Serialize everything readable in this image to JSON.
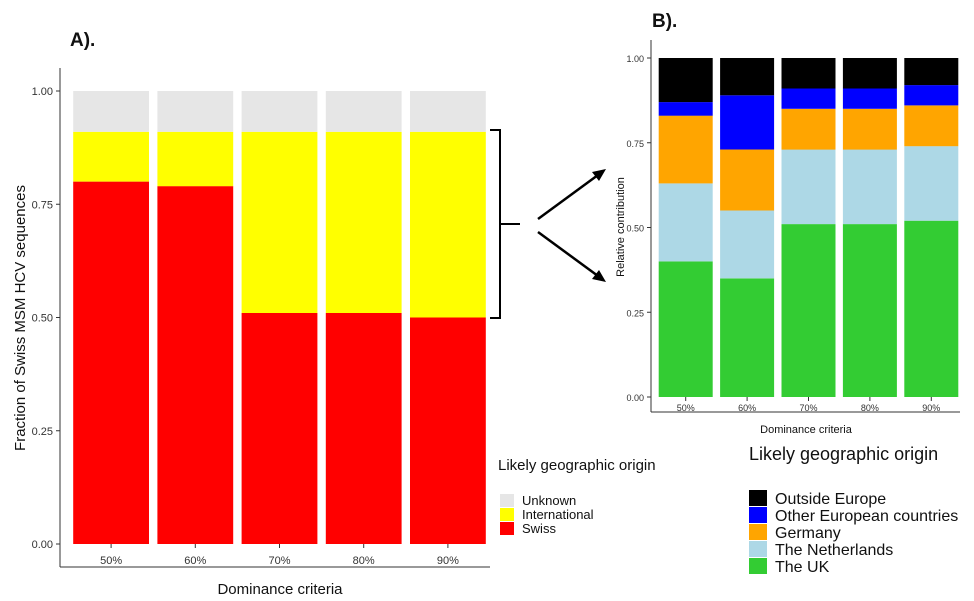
{
  "panel_labels": {
    "a": "A).",
    "b": "B)."
  },
  "chart_data": [
    {
      "type": "bar",
      "stacked": true,
      "xlabel": "Dominance criteria",
      "ylabel": "Fraction of Swiss MSM HCV sequences",
      "categories": [
        "50%",
        "60%",
        "70%",
        "80%",
        "90%"
      ],
      "ylim": [
        0,
        1
      ],
      "yticks": [
        "0.00",
        "0.25",
        "0.50",
        "0.75",
        "1.00"
      ],
      "grid": false,
      "legend": {
        "title": "Likely geographic origin",
        "position": "right"
      },
      "series": [
        {
          "name": "Swiss",
          "color": "#ff0000",
          "values": [
            0.8,
            0.79,
            0.51,
            0.51,
            0.5
          ]
        },
        {
          "name": "International",
          "color": "#ffff00",
          "values": [
            0.11,
            0.12,
            0.4,
            0.4,
            0.41
          ]
        },
        {
          "name": "Unknown",
          "color": "#e6e6e6",
          "values": [
            0.09,
            0.09,
            0.09,
            0.09,
            0.09
          ]
        }
      ]
    },
    {
      "type": "bar",
      "stacked": true,
      "xlabel": "Dominance criteria",
      "ylabel": "Relative contribution",
      "categories": [
        "50%",
        "60%",
        "70%",
        "80%",
        "90%"
      ],
      "ylim": [
        0,
        1
      ],
      "yticks": [
        "0.00",
        "0.25",
        "0.50",
        "0.75",
        "1.00"
      ],
      "grid": false,
      "legend": {
        "title": "Likely geographic origin",
        "position": "bottom-right"
      },
      "series": [
        {
          "name": "The UK",
          "color": "#33cc33",
          "values": [
            0.4,
            0.35,
            0.51,
            0.51,
            0.52
          ]
        },
        {
          "name": "The Netherlands",
          "color": "#add8e6",
          "values": [
            0.23,
            0.2,
            0.22,
            0.22,
            0.22
          ]
        },
        {
          "name": "Germany",
          "color": "#ffa500",
          "values": [
            0.2,
            0.18,
            0.12,
            0.12,
            0.12
          ]
        },
        {
          "name": "Other European countries",
          "color": "#0000ff",
          "values": [
            0.04,
            0.16,
            0.06,
            0.06,
            0.06
          ]
        },
        {
          "name": "Outside Europe",
          "color": "#000000",
          "values": [
            0.13,
            0.11,
            0.09,
            0.09,
            0.08
          ]
        }
      ]
    }
  ]
}
